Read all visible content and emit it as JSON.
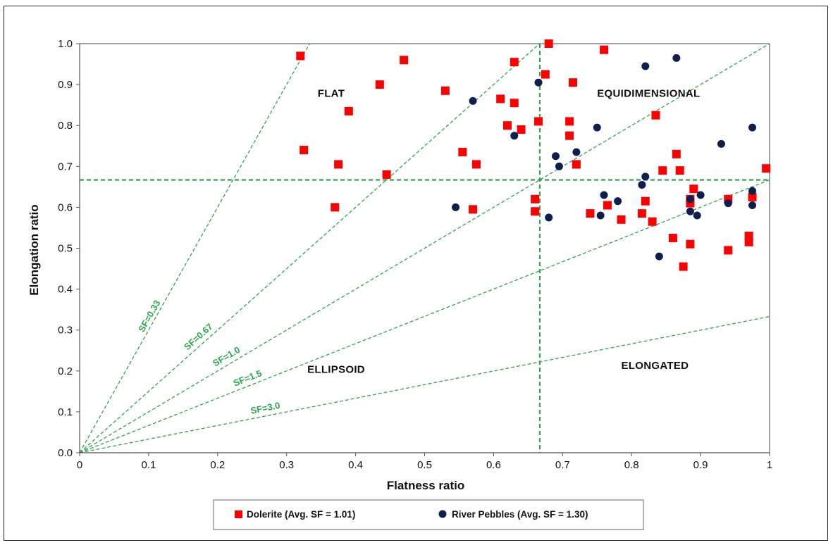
{
  "chart_data": {
    "type": "scatter",
    "xlabel": "Flatness ratio",
    "ylabel": "Elongation ratio",
    "xlim": [
      0,
      1
    ],
    "ylim": [
      0,
      1
    ],
    "x_ticks": [
      "0",
      "0.1",
      "0.2",
      "0.3",
      "0.4",
      "0.5",
      "0.6",
      "0.7",
      "0.8",
      "0.9",
      "1"
    ],
    "y_ticks": [
      "0.0",
      "0.1",
      "0.2",
      "0.3",
      "0.4",
      "0.5",
      "0.6",
      "0.7",
      "0.8",
      "0.9",
      "1.0"
    ],
    "grid": false,
    "legend_position": "bottom",
    "threshold_lines": {
      "x": 0.667,
      "y": 0.667,
      "color": "#2ca84a"
    },
    "sf_lines": [
      {
        "label": "SF=0.33",
        "slope": 3.0
      },
      {
        "label": "SF=0.67",
        "slope": 1.5
      },
      {
        "label": "SF=1.0",
        "slope": 1.0
      },
      {
        "label": "SF=1.5",
        "slope": 0.667
      },
      {
        "label": "SF=3.0",
        "slope": 0.333
      }
    ],
    "regions": [
      "FLAT",
      "EQUIDIMENSIONAL",
      "ELLIPSOID",
      "ELONGATED"
    ],
    "series": [
      {
        "name": "Dolerite (Avg. SF = 1.01)",
        "marker": "square",
        "color": "#ff0000",
        "points": [
          [
            0.32,
            0.97
          ],
          [
            0.47,
            0.96
          ],
          [
            0.63,
            0.955
          ],
          [
            0.68,
            1.0
          ],
          [
            0.76,
            0.985
          ],
          [
            0.435,
            0.9
          ],
          [
            0.53,
            0.885
          ],
          [
            0.675,
            0.925
          ],
          [
            0.715,
            0.905
          ],
          [
            0.39,
            0.835
          ],
          [
            0.61,
            0.865
          ],
          [
            0.63,
            0.855
          ],
          [
            0.62,
            0.8
          ],
          [
            0.64,
            0.79
          ],
          [
            0.665,
            0.81
          ],
          [
            0.71,
            0.81
          ],
          [
            0.71,
            0.775
          ],
          [
            0.835,
            0.825
          ],
          [
            0.325,
            0.74
          ],
          [
            0.555,
            0.735
          ],
          [
            0.375,
            0.705
          ],
          [
            0.575,
            0.705
          ],
          [
            0.72,
            0.705
          ],
          [
            0.445,
            0.68
          ],
          [
            0.865,
            0.73
          ],
          [
            0.845,
            0.69
          ],
          [
            0.87,
            0.69
          ],
          [
            0.995,
            0.695
          ],
          [
            0.37,
            0.6
          ],
          [
            0.57,
            0.595
          ],
          [
            0.66,
            0.62
          ],
          [
            0.66,
            0.59
          ],
          [
            0.74,
            0.585
          ],
          [
            0.765,
            0.605
          ],
          [
            0.815,
            0.585
          ],
          [
            0.82,
            0.615
          ],
          [
            0.785,
            0.57
          ],
          [
            0.83,
            0.565
          ],
          [
            0.885,
            0.62
          ],
          [
            0.89,
            0.645
          ],
          [
            0.885,
            0.61
          ],
          [
            0.94,
            0.62
          ],
          [
            0.975,
            0.625
          ],
          [
            0.86,
            0.525
          ],
          [
            0.885,
            0.51
          ],
          [
            0.94,
            0.495
          ],
          [
            0.97,
            0.53
          ],
          [
            0.97,
            0.515
          ],
          [
            0.875,
            0.455
          ]
        ]
      },
      {
        "name": "River Pebbles (Avg. SF = 1.30)",
        "marker": "circle",
        "color": "#0d1f4f",
        "points": [
          [
            0.57,
            0.86
          ],
          [
            0.665,
            0.905
          ],
          [
            0.82,
            0.945
          ],
          [
            0.865,
            0.965
          ],
          [
            0.63,
            0.775
          ],
          [
            0.75,
            0.795
          ],
          [
            0.975,
            0.795
          ],
          [
            0.93,
            0.755
          ],
          [
            0.69,
            0.725
          ],
          [
            0.72,
            0.735
          ],
          [
            0.695,
            0.7
          ],
          [
            0.82,
            0.675
          ],
          [
            0.815,
            0.655
          ],
          [
            0.545,
            0.6
          ],
          [
            0.68,
            0.575
          ],
          [
            0.76,
            0.63
          ],
          [
            0.755,
            0.58
          ],
          [
            0.78,
            0.615
          ],
          [
            0.885,
            0.59
          ],
          [
            0.885,
            0.62
          ],
          [
            0.9,
            0.63
          ],
          [
            0.895,
            0.58
          ],
          [
            0.94,
            0.61
          ],
          [
            0.975,
            0.64
          ],
          [
            0.975,
            0.605
          ],
          [
            0.84,
            0.48
          ]
        ]
      }
    ]
  }
}
